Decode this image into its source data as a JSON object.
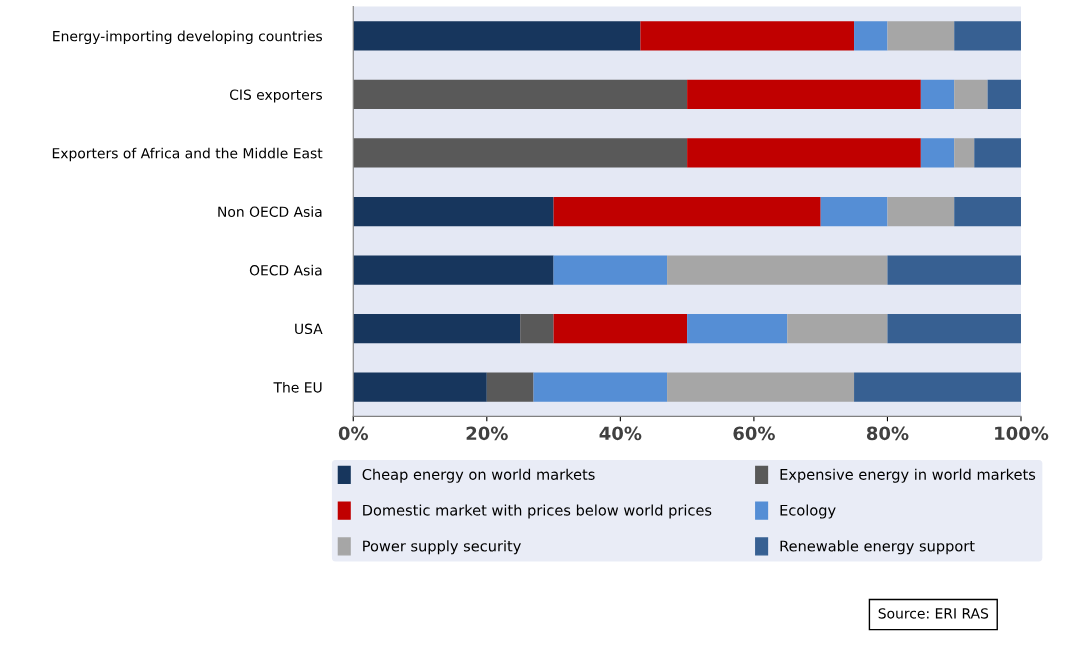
{
  "chart_data": {
    "type": "bar",
    "orientation": "horizontal",
    "stacked": true,
    "categories": [
      "Energy-importing developing countries",
      "CIS exporters",
      "Exporters of Africa and the Middle East",
      "Non OECD Asia",
      "OECD Asia",
      "USA",
      "The EU"
    ],
    "series": [
      {
        "name": "Cheap energy on world markets",
        "color": "#17365d",
        "values": [
          43,
          0,
          0,
          30,
          30,
          25,
          20
        ]
      },
      {
        "name": "Expensive energy in world markets",
        "color": "#595959",
        "values": [
          0,
          50,
          50,
          0,
          0,
          5,
          7
        ]
      },
      {
        "name": "Domestic market with prices below world prices",
        "color": "#c00000",
        "values": [
          32,
          35,
          35,
          40,
          0,
          20,
          0
        ]
      },
      {
        "name": "Ecology",
        "color": "#558ed5",
        "values": [
          5,
          5,
          5,
          10,
          17,
          15,
          20
        ]
      },
      {
        "name": "Power supply security",
        "color": "#a6a6a6",
        "values": [
          10,
          5,
          3,
          10,
          33,
          15,
          28
        ]
      },
      {
        "name": "Renewable energy support",
        "color": "#376092",
        "values": [
          10,
          5,
          7,
          10,
          20,
          20,
          25
        ]
      }
    ],
    "xlim": [
      0,
      100
    ],
    "xticks": [
      {
        "value": 0,
        "label": "0%"
      },
      {
        "value": 20,
        "label": "20%"
      },
      {
        "value": 40,
        "label": "40%"
      },
      {
        "value": 60,
        "label": "60%"
      },
      {
        "value": 80,
        "label": "80%"
      },
      {
        "value": 100,
        "label": "100%"
      }
    ],
    "grid": false,
    "legend": "bottom",
    "annotations": [
      "Source: ERI RAS"
    ]
  }
}
